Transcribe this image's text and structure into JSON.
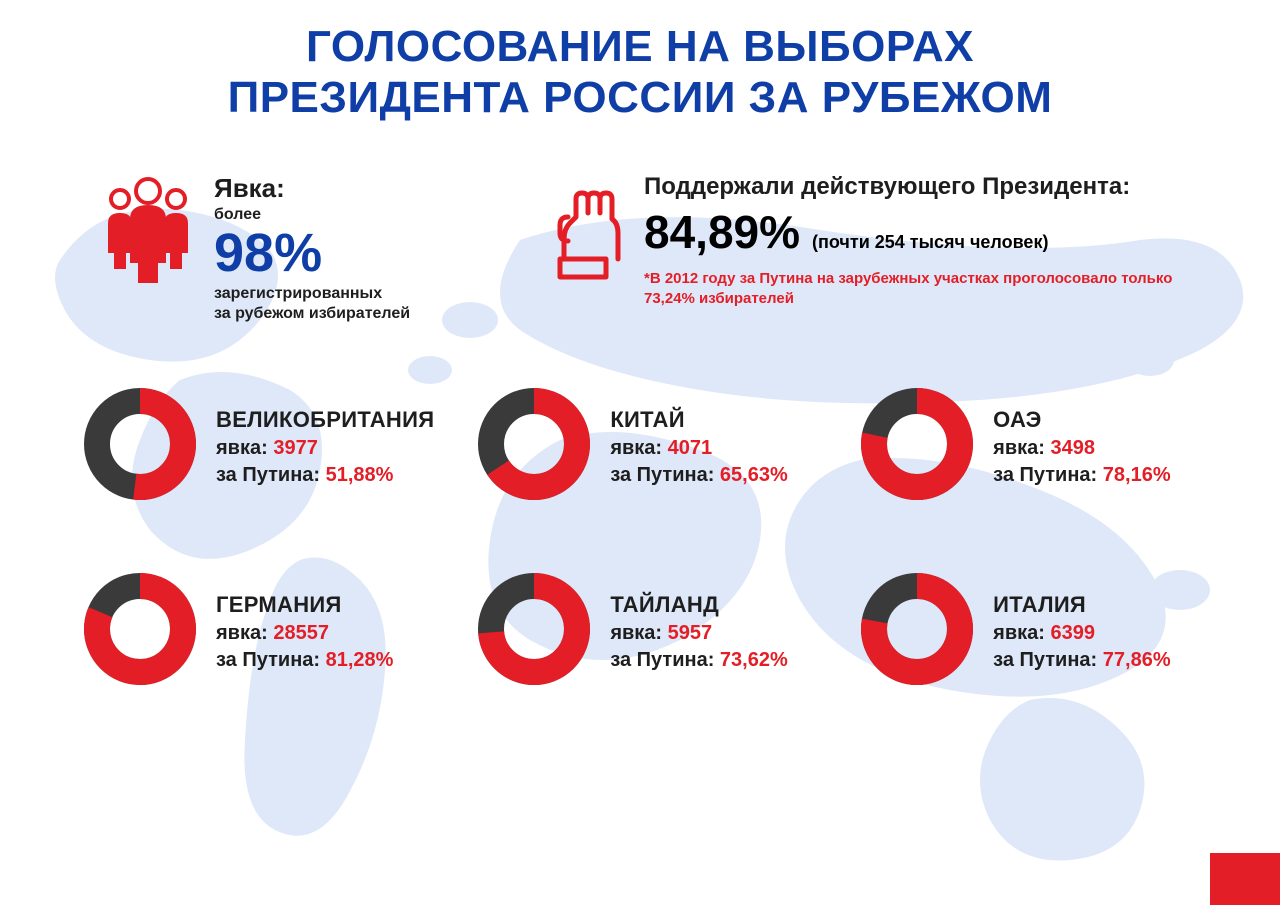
{
  "colors": {
    "title": "#0f3fa6",
    "accent_red": "#e41e26",
    "donut_dark": "#3a3a3a",
    "donut_hole": "#ffffff",
    "map": "#b8cef0",
    "text": "#1e1e1e"
  },
  "title_line1": "ГОЛОСОВАНИЕ НА ВЫБОРАХ",
  "title_line2": "ПРЕЗИДЕНТА РОССИИ ЗА РУБЕЖОМ",
  "turnout": {
    "label": "Явка:",
    "sub": "более",
    "value": "98%",
    "desc1": "зарегистрированных",
    "desc2": "за рубежом избирателей"
  },
  "support": {
    "label": "Поддержали действующего Президента:",
    "value": "84,89%",
    "paren": "(почти 254 тысяч человек)",
    "note_prefix": "*В 2012 году за Путина на зарубежных участках проголосовало только ",
    "note_pct": "73,24%",
    "note_suffix": " избирателей"
  },
  "stat_labels": {
    "turnout": "явка:",
    "for": "за Путина:"
  },
  "donut_style": {
    "outer_r": 56,
    "inner_r": 30,
    "size": 120,
    "stroke_width": 26
  },
  "countries": [
    {
      "name": "ВЕЛИКОБРИТАНИЯ",
      "turnout": "3977",
      "pct_label": "51,88%",
      "pct": 51.88
    },
    {
      "name": "КИТАЙ",
      "turnout": "4071",
      "pct_label": "65,63%",
      "pct": 65.63
    },
    {
      "name": "ОАЭ",
      "turnout": "3498",
      "pct_label": "78,16%",
      "pct": 78.16
    },
    {
      "name": "ГЕРМАНИЯ",
      "turnout": "28557",
      "pct_label": "81,28%",
      "pct": 81.28
    },
    {
      "name": "ТАЙЛАНД",
      "turnout": "5957",
      "pct_label": "73,62%",
      "pct": 73.62
    },
    {
      "name": "ИТАЛИЯ",
      "turnout": "6399",
      "pct_label": "77,86%",
      "pct": 77.86
    }
  ]
}
